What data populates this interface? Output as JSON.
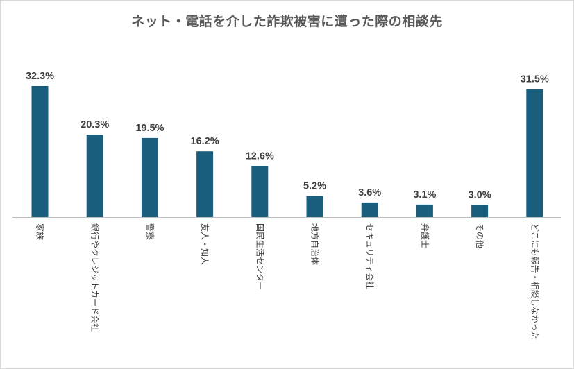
{
  "chart_data": {
    "type": "bar",
    "title": "ネット・電話を介した詐欺被害に遭った際の相談先",
    "categories": [
      "家族",
      "銀行やクレジットカード会社",
      "警察",
      "友人・知人",
      "国民生活センター",
      "地方自治体",
      "セキュリティ会社",
      "弁護士",
      "その他",
      "どこにも報告・相談しなかった"
    ],
    "values": [
      32.3,
      20.3,
      19.5,
      16.2,
      12.6,
      5.2,
      3.6,
      3.1,
      3.0,
      31.5
    ],
    "value_labels": [
      "32.3%",
      "20.3%",
      "19.5%",
      "16.2%",
      "12.6%",
      "5.2%",
      "3.6%",
      "3.1%",
      "3.0%",
      "31.5%"
    ],
    "unit": "%",
    "ylim": [
      0,
      32.3
    ],
    "grid": false,
    "bar_color": "#1a5e7e"
  }
}
